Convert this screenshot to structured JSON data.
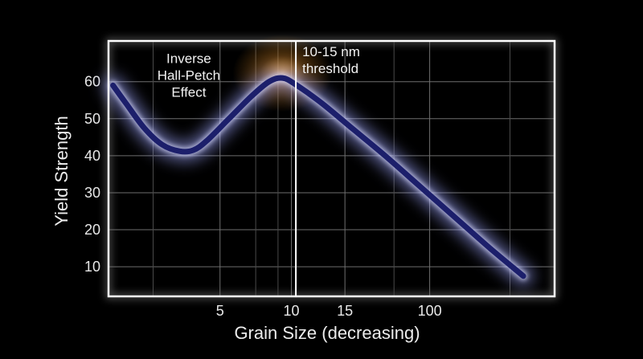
{
  "chart_data": {
    "type": "line",
    "title": "",
    "xlabel": "Grain Size (decreasing)",
    "ylabel": "Yield Strength",
    "x_ticks": [
      {
        "label": "5",
        "pos": 0.25
      },
      {
        "label": "10",
        "pos": 0.41
      },
      {
        "label": "15",
        "pos": 0.53
      },
      {
        "label": "100",
        "pos": 0.72
      }
    ],
    "ylim": [
      2,
      71
    ],
    "y_ticks": [
      10,
      20,
      30,
      40,
      50,
      60
    ],
    "grid": true,
    "series": [
      {
        "points": [
          [
            0.01,
            59
          ],
          [
            0.04,
            54
          ],
          [
            0.08,
            47.5
          ],
          [
            0.12,
            43
          ],
          [
            0.16,
            41.2
          ],
          [
            0.19,
            41.5
          ],
          [
            0.22,
            44
          ],
          [
            0.27,
            50
          ],
          [
            0.32,
            56
          ],
          [
            0.36,
            60
          ],
          [
            0.39,
            61
          ],
          [
            0.42,
            59.2
          ],
          [
            0.48,
            54
          ],
          [
            0.55,
            47
          ],
          [
            0.62,
            40
          ],
          [
            0.7,
            31.5
          ],
          [
            0.78,
            23
          ],
          [
            0.86,
            14.5
          ],
          [
            0.93,
            7.5
          ]
        ],
        "color": "#1c1f6b"
      }
    ],
    "threshold": {
      "pos": 0.42,
      "label_lines": [
        "10-15 nm",
        "threshold"
      ]
    },
    "annotation": {
      "lines": [
        "Inverse",
        "Hall-Petch",
        "Effect"
      ],
      "x": 0.18,
      "y": 65
    }
  }
}
